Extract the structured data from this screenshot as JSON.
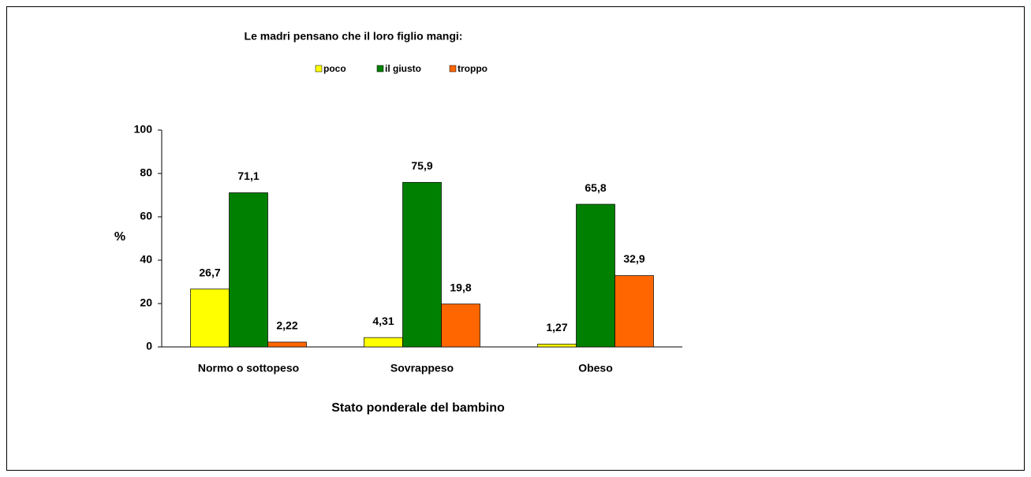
{
  "chart_data": {
    "type": "bar",
    "title": "Le madri pensano che il loro figlio mangi:",
    "x_label": "Stato ponderale del bambino",
    "y_label": "%",
    "categories": [
      "Normo o sottopeso",
      "Sovrappeso",
      "Obeso"
    ],
    "series": [
      {
        "name": "poco",
        "color": "#ffff00",
        "values": [
          26.7,
          4.31,
          1.27
        ],
        "value_labels": [
          "26,7",
          "4,31",
          "1,27"
        ]
      },
      {
        "name": "il giusto",
        "color": "#008000",
        "values": [
          71.1,
          75.9,
          65.8
        ],
        "value_labels": [
          "71,1",
          "75,9",
          "65,8"
        ]
      },
      {
        "name": "troppo",
        "color": "#ff6600",
        "values": [
          2.22,
          19.8,
          32.9
        ],
        "value_labels": [
          "2,22",
          "19,8",
          "32,9"
        ]
      }
    ],
    "ylim": [
      0,
      100
    ],
    "yticks": [
      0,
      20,
      40,
      60,
      80,
      100
    ],
    "legend": "top"
  }
}
